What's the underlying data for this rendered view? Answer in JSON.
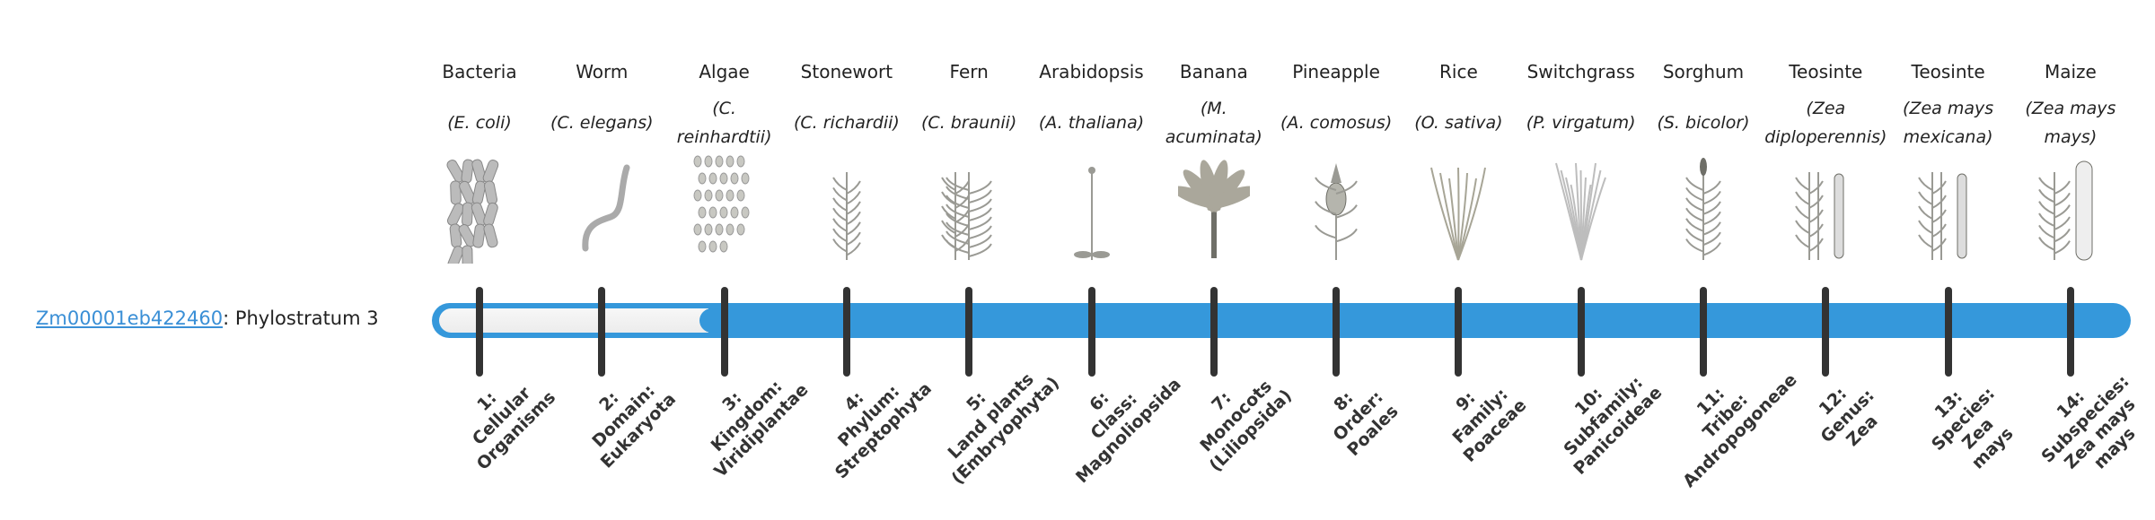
{
  "gene": {
    "id": "Zm00001eb422460",
    "suffix": ": Phylostratum 3"
  },
  "progress": {
    "phylostratum": 3,
    "total": 14
  },
  "colors": {
    "bar": "#3598db",
    "link": "#3a8fd6",
    "tick": "#333333"
  },
  "organisms": [
    {
      "name": "Bacteria",
      "species": "(E. coli)",
      "icon": "bacteria-icon"
    },
    {
      "name": "Worm",
      "species": "(C. elegans)",
      "icon": "worm-icon"
    },
    {
      "name": "Algae",
      "species": "(C. reinhardtii)",
      "icon": "algae-icon"
    },
    {
      "name": "Stonewort",
      "species": "(C. richardii)",
      "icon": "stonewort-icon"
    },
    {
      "name": "Fern",
      "species": "(C. braunii)",
      "icon": "fern-icon"
    },
    {
      "name": "Arabidopsis",
      "species": "(A. thaliana)",
      "icon": "arabidopsis-icon"
    },
    {
      "name": "Banana",
      "species": "(M. acuminata)",
      "icon": "banana-icon"
    },
    {
      "name": "Pineapple",
      "species": "(A. comosus)",
      "icon": "pineapple-icon"
    },
    {
      "name": "Rice",
      "species": "(O. sativa)",
      "icon": "rice-icon"
    },
    {
      "name": "Switchgrass",
      "species": "(P. virgatum)",
      "icon": "switchgrass-icon"
    },
    {
      "name": "Sorghum",
      "species": "(S. bicolor)",
      "icon": "sorghum-icon"
    },
    {
      "name": "Teosinte",
      "species": "(Zea diploperennis)",
      "icon": "teosinte-icon"
    },
    {
      "name": "Teosinte",
      "species": "(Zea mays mexicana)",
      "icon": "teosinte-icon"
    },
    {
      "name": "Maize",
      "species": "(Zea mays mays)",
      "icon": "maize-icon"
    }
  ],
  "strata": [
    [
      "1:",
      "Cellular",
      "Organisms"
    ],
    [
      "2:",
      "Domain:",
      "Eukaryota"
    ],
    [
      "3:",
      "Kingdom:",
      "Viridiplantae"
    ],
    [
      "4:",
      "Phylum:",
      "Streptophyta"
    ],
    [
      "5:",
      "Land plants",
      "(Embryophyta)"
    ],
    [
      "6:",
      "Class:",
      "Magnoliopsida"
    ],
    [
      "7:",
      "Monocots",
      "(Liliopsida)"
    ],
    [
      "8:",
      "Order:",
      "Poales"
    ],
    [
      "9:",
      "Family:",
      "Poaceae"
    ],
    [
      "10:",
      "Subfamily:",
      "Panicoideae"
    ],
    [
      "11:",
      "Tribe:",
      "Andropogoneae"
    ],
    [
      "12:",
      "Genus:",
      "Zea"
    ],
    [
      "13:",
      "Species:",
      "Zea",
      "mays"
    ],
    [
      "14:",
      "Subspecies:",
      "Zea mays",
      "mays"
    ]
  ]
}
